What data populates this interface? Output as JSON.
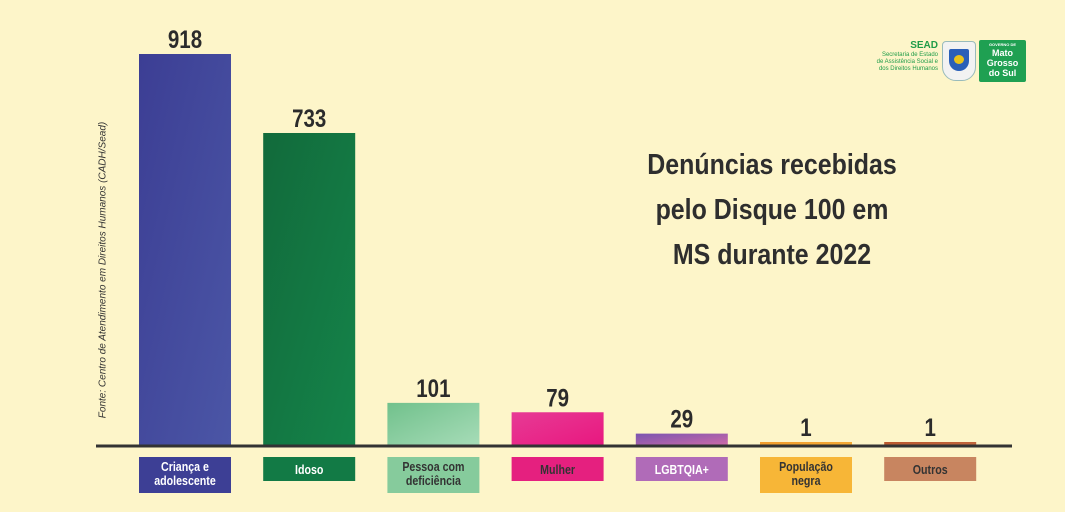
{
  "chart_data": {
    "type": "bar",
    "title_lines": [
      "Denúncias recebidas",
      "pelo Disque 100 em",
      "MS durante 2022"
    ],
    "source": "Fonte: Centro de Atendimento em Direitos Humanos (CADH/Sead)",
    "categories": [
      {
        "label": [
          "Criança e",
          "adolescente"
        ],
        "value": 918,
        "data_label": "918",
        "color": "#3c3e94",
        "color2": "#4b56a6",
        "label_bg": "#3d3f95",
        "label_color": "#ffffff"
      },
      {
        "label": [
          "Idoso"
        ],
        "value": 733,
        "data_label": "733",
        "color": "#126a3b",
        "color2": "#14844a",
        "label_bg": "#127a45",
        "label_color": "#ffffff"
      },
      {
        "label": [
          "Pessoa com",
          "deficiência"
        ],
        "value": 101,
        "data_label": "101",
        "color": "#71c18c",
        "color2": "#a7dcb8",
        "label_bg": "#86cb9c",
        "label_color": "#333333"
      },
      {
        "label": [
          "Mulher"
        ],
        "value": 79,
        "data_label": "79",
        "color": "#e73b95",
        "color2": "#e8177f",
        "label_bg": "#e5207f",
        "label_color": "#333333"
      },
      {
        "label": [
          "LGBTQIA+"
        ],
        "value": 29,
        "data_label": "29",
        "color": "#7a55b0",
        "color2": "#d06aa8",
        "label_bg": "#b06bb8",
        "label_color": "#ffffff"
      },
      {
        "label": [
          "População",
          "negra"
        ],
        "value": 1,
        "data_label": "1",
        "color": "#f19a2a",
        "color2": "#f6b33d",
        "label_bg": "#f7b637",
        "label_color": "#333333"
      },
      {
        "label": [
          "Outros"
        ],
        "value": 1,
        "data_label": "1",
        "color": "#b9562b",
        "color2": "#c66f46",
        "label_bg": "#c88560",
        "label_color": "#333333"
      }
    ],
    "ylim": [
      0,
      918
    ],
    "grid": false,
    "axis_color": "#333333"
  },
  "logo": {
    "sead_title": "SEAD",
    "sead_lines": [
      "Secretaria de Estado",
      "de Assistência Social e",
      "dos Direitos Humanos"
    ],
    "gov_small": "GOVERNO DE",
    "gov_lines": [
      "Mato",
      "Grosso",
      "do Sul"
    ]
  }
}
